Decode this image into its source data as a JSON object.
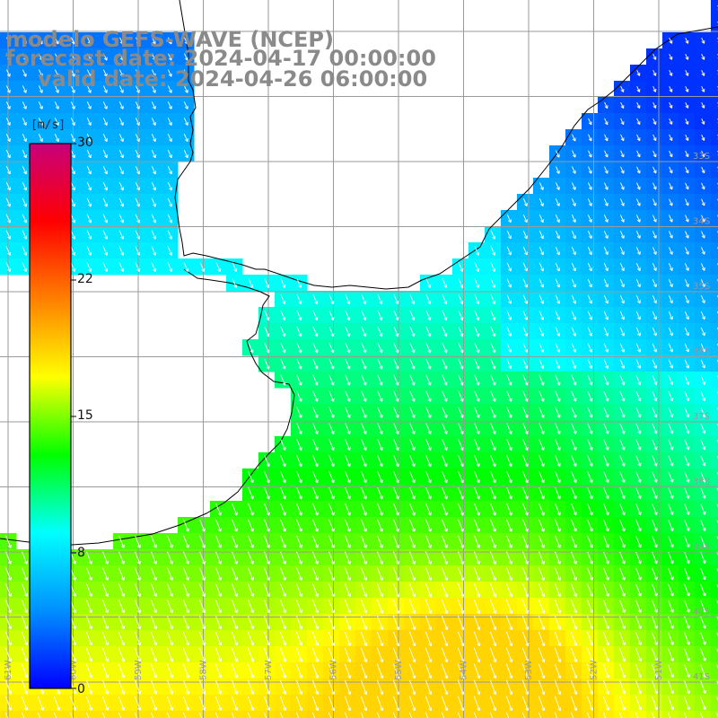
{
  "header": {
    "model": "modelo GEFS-WAVE (NCEP)",
    "forecast": "forecast date: 2024-04-17 00:00:00",
    "valid": "valid date: 2024-04-26 06:00:00"
  },
  "colorbar": {
    "unit": "[m/s]",
    "labels": [
      "30",
      "22",
      "15",
      "8",
      "0"
    ],
    "stops": [
      "#0000ff",
      "#0090ff",
      "#00ffff",
      "#00ff00",
      "#ffff00",
      "#ff8000",
      "#ff0000",
      "#c8007c"
    ]
  },
  "map": {
    "lat_labels": [
      "33S",
      "34S",
      "35S",
      "36S",
      "37S",
      "38S",
      "39S",
      "40S",
      "41S"
    ],
    "lon_labels": [
      "61W",
      "60W",
      "59W",
      "58W",
      "57W",
      "56W",
      "55W",
      "54W",
      "53W",
      "52W",
      "51W"
    ],
    "colors": {
      "land": "#ffffff",
      "grid": "#9a9a9a",
      "coast": "#000000",
      "arrows": "#ffffff"
    }
  }
}
